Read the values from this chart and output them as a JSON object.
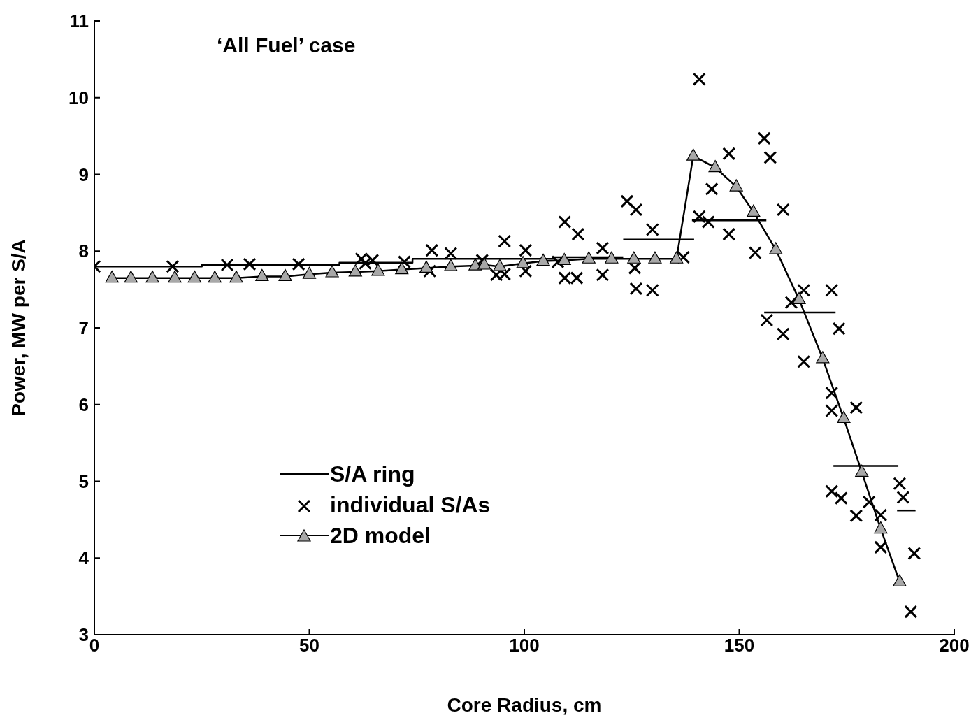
{
  "chart_data": {
    "type": "line",
    "xlabel": "Core Radius, cm",
    "ylabel": "Power, MW per S/A",
    "annotations": [
      "‘All Fuel’ case"
    ],
    "xlim": [
      0,
      200
    ],
    "xticks": [
      0,
      50,
      100,
      150,
      200
    ],
    "ylim": [
      3,
      11
    ],
    "yticks": [
      3,
      4,
      5,
      6,
      7,
      8,
      9,
      10,
      11
    ],
    "grid": false,
    "legend": "left",
    "series": [
      {
        "name": "S/A ring",
        "type": "step",
        "marker": "none",
        "color": "#000000",
        "x": [
          0,
          25,
          57,
          74,
          107,
          123
        ],
        "values": [
          7.8,
          7.82,
          7.85,
          7.9,
          7.92,
          7.92
        ]
      },
      {
        "marker": "none",
        "color": "#000000",
        "x": [
          123,
          139.5
        ],
        "values": [
          8.15,
          8.15
        ]
      },
      {
        "marker": "none",
        "color": "#000000",
        "x": [
          139,
          156.3
        ],
        "values": [
          8.4,
          8.4
        ]
      },
      {
        "marker": "none",
        "color": "#000000",
        "x": [
          155.8,
          172.4
        ],
        "values": [
          7.2,
          7.2
        ]
      },
      {
        "marker": "none",
        "color": "#000000",
        "x": [
          171.9,
          187
        ],
        "values": [
          5.2,
          5.2
        ]
      },
      {
        "marker": "none",
        "color": "#000000",
        "x": [
          186.7,
          191
        ],
        "values": [
          4.62,
          4.62
        ]
      },
      {
        "name": "individual S/As",
        "type": "scatter",
        "marker": "cross",
        "color": "#000000",
        "x": [
          0,
          18.2,
          30.9,
          36.1,
          47.5,
          62.1,
          63,
          64.7,
          72.1,
          78,
          78.5,
          82.9,
          90.2,
          93.5,
          95.4,
          95.4,
          100.3,
          100.3,
          107.8,
          109.4,
          109.4,
          112.2,
          112.5,
          118.2,
          118.2,
          123.9,
          125.7,
          126,
          126,
          129.8,
          129.8,
          137,
          140.7,
          140.7,
          142.8,
          143.6,
          147.6,
          147.6,
          153.7,
          155.8,
          156.4,
          157.2,
          160.2,
          160.2,
          162.1,
          165,
          165,
          171.5,
          171.5,
          171.5,
          171.5,
          173.2,
          173.7,
          177.2,
          177.2,
          180.2,
          182.9,
          182.9,
          187.3,
          188.1,
          189.9,
          190.7
        ],
        "values": [
          7.8,
          7.8,
          7.82,
          7.83,
          7.83,
          7.9,
          7.84,
          7.88,
          7.86,
          7.74,
          8.01,
          7.97,
          7.88,
          7.69,
          8.13,
          7.7,
          8.01,
          7.74,
          7.86,
          8.38,
          7.65,
          7.65,
          8.22,
          8.04,
          7.69,
          8.65,
          7.78,
          8.54,
          7.51,
          8.28,
          7.49,
          7.92,
          10.24,
          8.45,
          8.38,
          8.81,
          9.27,
          8.22,
          7.98,
          9.47,
          7.1,
          9.22,
          8.54,
          6.92,
          7.33,
          7.49,
          6.56,
          7.49,
          6.15,
          5.92,
          4.87,
          6.99,
          4.78,
          5.96,
          4.55,
          4.73,
          4.56,
          4.14,
          4.97,
          4.79,
          3.3,
          4.06
        ]
      },
      {
        "name": "2D model",
        "marker": "triangle",
        "color": "#000000",
        "x": [
          4.1,
          8.5,
          13.5,
          18.7,
          23.3,
          28,
          33,
          39,
          44.4,
          50,
          55.3,
          60.7,
          66,
          71.5,
          77.2,
          82.9,
          88.6,
          90.7,
          94.3,
          99.7,
          104.4,
          109.3,
          115,
          120.3,
          125.5,
          130.4,
          135.4,
          139.3,
          144.4,
          149.3,
          153.3,
          158.5,
          163.9,
          169.4,
          174.3,
          178.5,
          182.9,
          187.3
        ],
        "values": [
          7.65,
          7.65,
          7.65,
          7.65,
          7.65,
          7.65,
          7.65,
          7.67,
          7.67,
          7.7,
          7.72,
          7.73,
          7.74,
          7.76,
          7.78,
          7.8,
          7.81,
          7.82,
          7.8,
          7.84,
          7.87,
          7.88,
          7.9,
          7.9,
          7.9,
          7.9,
          7.9,
          9.24,
          9.09,
          8.84,
          8.51,
          8.02,
          7.37,
          6.6,
          5.82,
          5.12,
          4.38,
          3.69
        ]
      }
    ]
  }
}
